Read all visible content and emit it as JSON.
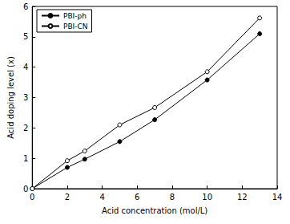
{
  "chart_data": {
    "type": "line",
    "x_label": "Acid concentration (mol/L)",
    "y_label": "Acid doping level (x)",
    "xlim": [
      0,
      14
    ],
    "xticks": [
      0,
      2,
      4,
      6,
      8,
      10,
      12,
      14
    ],
    "ylim": [
      0,
      6
    ],
    "yticks": [
      0,
      1,
      2,
      3,
      4,
      5,
      6
    ],
    "grid": false,
    "legend": "upper left",
    "series": [
      {
        "name": "PBI-ph",
        "color": "#000000",
        "marker": "circle",
        "line_style": "solid",
        "x": [
          0,
          2,
          3,
          5,
          7,
          10,
          13
        ],
        "values": [
          0,
          0.7,
          0.97,
          1.55,
          2.27,
          3.58,
          5.1
        ]
      },
      {
        "name": "PBI-CN",
        "color": "#000000",
        "marker": "open_circle",
        "line_style": "solid",
        "x": [
          0,
          2,
          3,
          5,
          7,
          10,
          13
        ],
        "values": [
          0,
          0.92,
          1.24,
          2.1,
          2.67,
          3.85,
          5.62
        ]
      }
    ]
  }
}
